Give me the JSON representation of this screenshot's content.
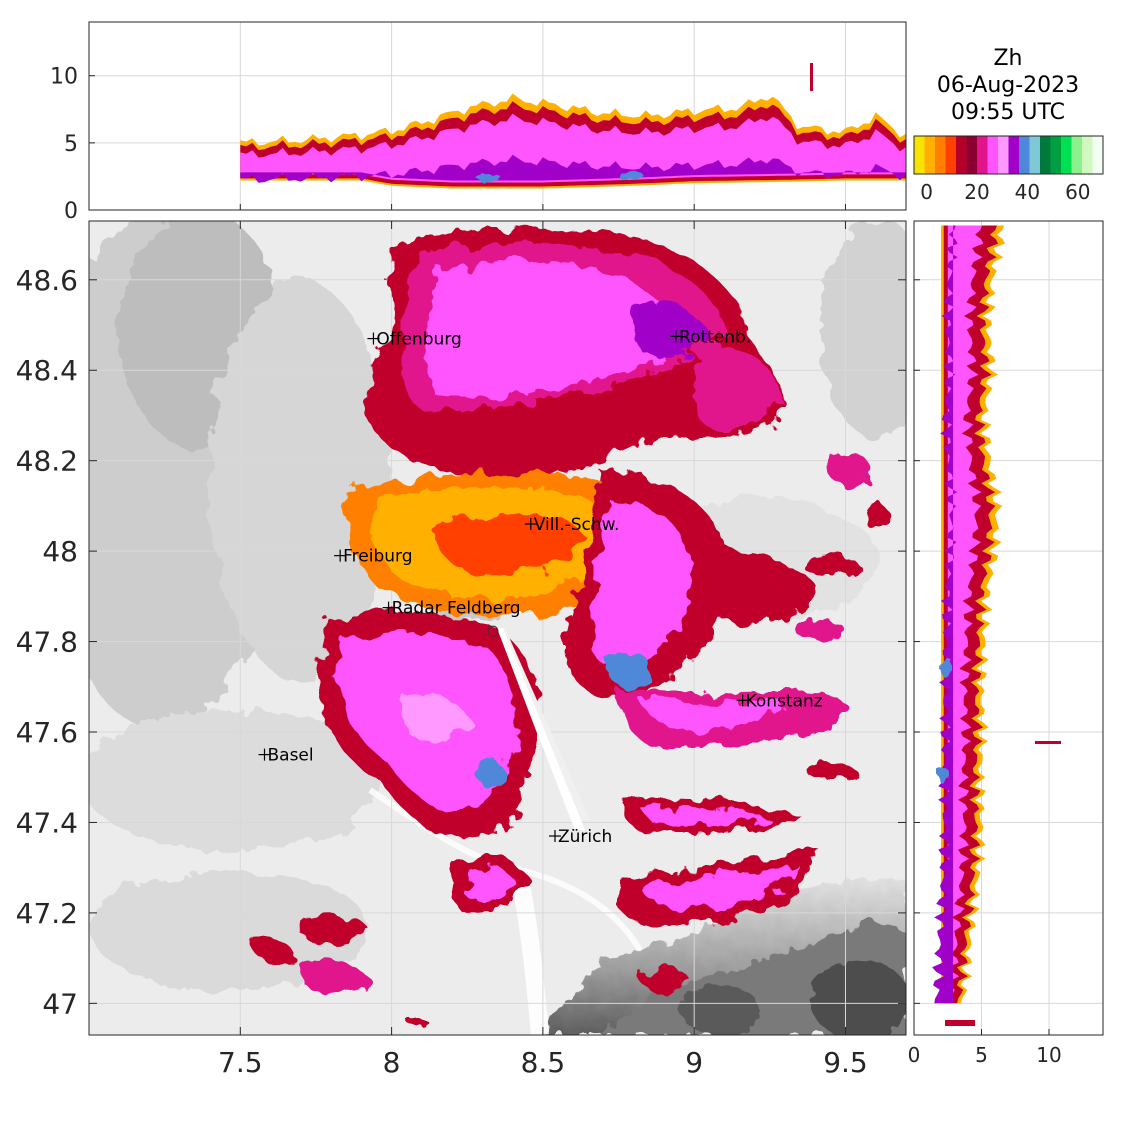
{
  "chart_data": {
    "type": "heatmap",
    "variable": "Zh",
    "date": "06-Aug-2023",
    "time": "09:55 UTC",
    "colorbar": {
      "ticks": [
        "0",
        "20",
        "40",
        "60"
      ],
      "range": [
        -5,
        70
      ],
      "colors": [
        "#f7e400",
        "#ffb000",
        "#ff7f00",
        "#ff4000",
        "#b40028",
        "#8b0030",
        "#e1148c",
        "#ff55ff",
        "#ff99ff",
        "#a000c8",
        "#4f88d8",
        "#7ec8d8",
        "#007a3a",
        "#00a040",
        "#00e050",
        "#8cf08c",
        "#d0f8c0",
        "#f4fff4"
      ]
    },
    "main_map": {
      "xlim": [
        7.0,
        9.7
      ],
      "ylim": [
        46.93,
        48.73
      ],
      "xticks": [
        "7.5",
        "8",
        "8.5",
        "9",
        "9.5"
      ],
      "yticks": [
        "47",
        "47.2",
        "47.4",
        "47.6",
        "47.8",
        "48",
        "48.2",
        "48.4",
        "48.6"
      ],
      "radar_site": {
        "lon": 8.335,
        "lat": 47.823
      },
      "cities": [
        {
          "name": "Offenburg",
          "lon": 7.94,
          "lat": 48.47
        },
        {
          "name": "Rottenb.",
          "lon": 8.94,
          "lat": 48.475
        },
        {
          "name": "Vill.-Schw.",
          "lon": 8.46,
          "lat": 48.06
        },
        {
          "name": "Freiburg",
          "lon": 7.83,
          "lat": 47.99
        },
        {
          "name": "Radar Feldberg",
          "lon": 7.99,
          "lat": 47.875
        },
        {
          "name": "Konstanz",
          "lon": 9.16,
          "lat": 47.67
        },
        {
          "name": "Basel",
          "lon": 7.58,
          "lat": 47.55
        },
        {
          "name": "Zürich",
          "lon": 8.54,
          "lat": 47.37
        }
      ]
    },
    "top_panel": {
      "xlim": [
        7.0,
        9.7
      ],
      "ylim": [
        0,
        14
      ],
      "yticks": [
        "0",
        "5",
        "10"
      ],
      "echo_top": [
        [
          7.5,
          5.0
        ],
        [
          7.7,
          5.2
        ],
        [
          7.9,
          5.6
        ],
        [
          8.0,
          5.9
        ],
        [
          8.1,
          6.5
        ],
        [
          8.25,
          7.6
        ],
        [
          8.4,
          8.3
        ],
        [
          8.55,
          7.8
        ],
        [
          8.7,
          7.2
        ],
        [
          8.85,
          7.0
        ],
        [
          9.0,
          7.4
        ],
        [
          9.15,
          7.6
        ],
        [
          9.25,
          8.6
        ],
        [
          9.35,
          6.2
        ],
        [
          9.5,
          5.8
        ],
        [
          9.6,
          7.0
        ],
        [
          9.7,
          5.5
        ]
      ],
      "echo_base": [
        [
          7.5,
          2.2
        ],
        [
          7.9,
          2.2
        ],
        [
          8.0,
          1.8
        ],
        [
          8.2,
          1.6
        ],
        [
          8.5,
          1.6
        ],
        [
          8.8,
          1.8
        ],
        [
          9.0,
          2.0
        ],
        [
          9.3,
          2.1
        ],
        [
          9.5,
          2.2
        ],
        [
          9.7,
          2.2
        ]
      ]
    },
    "right_panel": {
      "xlim": [
        0,
        14
      ],
      "ylim": [
        46.93,
        48.73
      ],
      "xticks": [
        "0",
        "5",
        "10"
      ],
      "echo_right": [
        [
          48.7,
          6.5
        ],
        [
          48.6,
          5.8
        ],
        [
          48.5,
          5.5
        ],
        [
          48.4,
          5.8
        ],
        [
          48.3,
          5.2
        ],
        [
          48.2,
          5.6
        ],
        [
          48.1,
          6.2
        ],
        [
          48.0,
          6.0
        ],
        [
          47.9,
          5.4
        ],
        [
          47.8,
          5.2
        ],
        [
          47.7,
          5.0
        ],
        [
          47.6,
          5.1
        ],
        [
          47.5,
          4.9
        ],
        [
          47.4,
          5.0
        ],
        [
          47.3,
          4.8
        ],
        [
          47.2,
          4.4
        ],
        [
          47.1,
          4.0
        ],
        [
          47.0,
          3.6
        ]
      ]
    }
  }
}
